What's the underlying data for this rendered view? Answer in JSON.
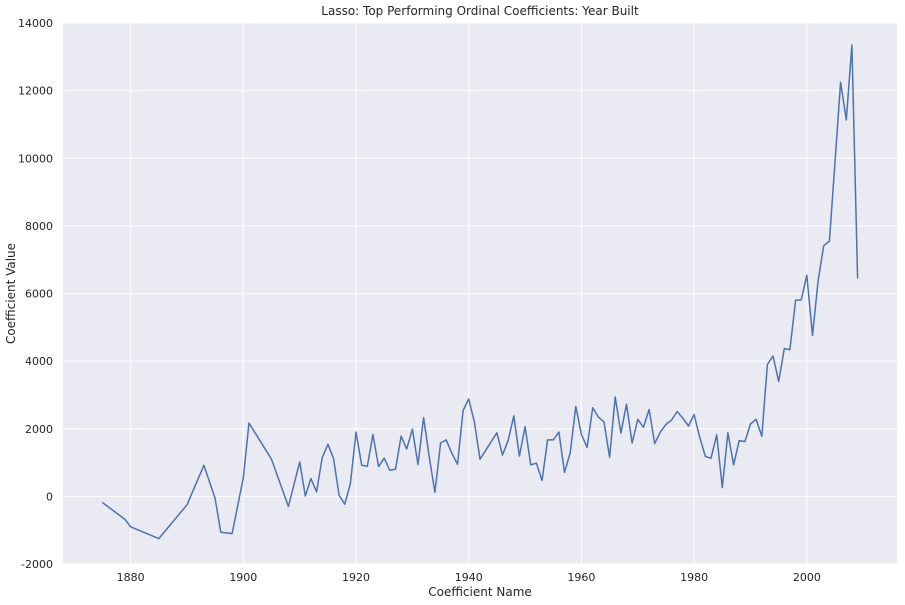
{
  "chart_data": {
    "type": "line",
    "title": "Lasso: Top Performing Ordinal Coefficients: Year Built",
    "xlabel": "Coefficient Name",
    "ylabel": "Coefficient Value",
    "xlim": [
      1868,
      2016
    ],
    "ylim": [
      -2000,
      14000
    ],
    "xticks": [
      1880,
      1900,
      1920,
      1940,
      1960,
      1980,
      2000
    ],
    "yticks": [
      -2000,
      0,
      2000,
      4000,
      6000,
      8000,
      10000,
      12000,
      14000
    ],
    "grid": true,
    "background": "#eaeaf2",
    "grid_color": "#ffffff",
    "line_color": "#4c72b0",
    "series": [
      {
        "x": [
          1875,
          1879,
          1880,
          1885,
          1890,
          1893,
          1895,
          1896,
          1898,
          1900,
          1901,
          1905,
          1908,
          1910,
          1911,
          1912,
          1913,
          1914,
          1915,
          1916,
          1917,
          1918,
          1919,
          1920,
          1921,
          1922,
          1923,
          1924,
          1925,
          1926,
          1927,
          1928,
          1929,
          1930,
          1931,
          1932,
          1933,
          1934,
          1935,
          1936,
          1937,
          1938,
          1939,
          1940,
          1941,
          1942,
          1945,
          1946,
          1947,
          1948,
          1949,
          1950,
          1951,
          1952,
          1953,
          1954,
          1955,
          1956,
          1957,
          1958,
          1959,
          1960,
          1961,
          1962,
          1963,
          1964,
          1965,
          1966,
          1967,
          1968,
          1969,
          1970,
          1971,
          1972,
          1973,
          1974,
          1975,
          1976,
          1977,
          1978,
          1979,
          1980,
          1981,
          1982,
          1983,
          1984,
          1985,
          1986,
          1987,
          1988,
          1989,
          1990,
          1991,
          1992,
          1993,
          1994,
          1995,
          1996,
          1997,
          1998,
          1999,
          2000,
          2001,
          2002,
          2003,
          2004,
          2005,
          2006,
          2007,
          2008,
          2009
        ],
        "y": [
          -180,
          -680,
          -900,
          -1250,
          -250,
          920,
          -60,
          -1060,
          -1100,
          550,
          2170,
          1100,
          -300,
          1020,
          10,
          530,
          130,
          1150,
          1540,
          1130,
          30,
          -230,
          380,
          1900,
          920,
          890,
          1830,
          880,
          1130,
          770,
          800,
          1780,
          1400,
          1990,
          940,
          2330,
          1160,
          120,
          1580,
          1670,
          1280,
          950,
          2540,
          2880,
          2200,
          1100,
          1880,
          1220,
          1660,
          2380,
          1190,
          2060,
          930,
          980,
          470,
          1670,
          1670,
          1900,
          710,
          1290,
          2660,
          1830,
          1450,
          2620,
          2350,
          2200,
          1160,
          2940,
          1870,
          2730,
          1580,
          2280,
          2040,
          2570,
          1560,
          1900,
          2130,
          2260,
          2510,
          2310,
          2080,
          2420,
          1740,
          1180,
          1130,
          1820,
          260,
          1880,
          930,
          1650,
          1620,
          2140,
          2280,
          1780,
          3900,
          4150,
          3400,
          4370,
          4340,
          5800,
          5810,
          6540,
          4760,
          6380,
          7410,
          7550,
          9880,
          12250,
          11130,
          13350,
          6440
        ]
      }
    ]
  }
}
